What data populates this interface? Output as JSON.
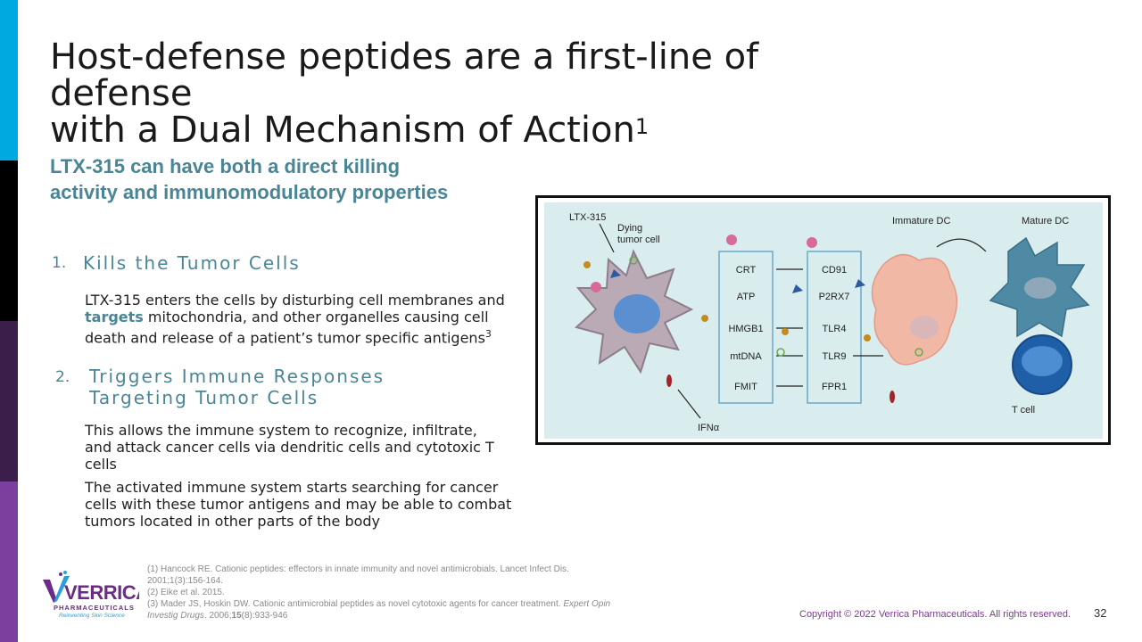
{
  "slide": {
    "title_line1": "Host-defense peptides are a first-line of defense",
    "title_line2": "with a Dual Mechanism of Action",
    "title_sup": "1",
    "subtitle": "LTX-315 can have both a direct killing activity and immunomodulatory properties",
    "item1": {
      "num": "1.",
      "heading": "Kills the Tumor Cells",
      "para_part1": "LTX-315 enters the cells by disturbing cell membranes and ",
      "para_highlight": "targets",
      "para_part2": " mitochondria, and other organelles causing cell death and release of a patient’s tumor specific antigens",
      "para_sup": "3"
    },
    "item2": {
      "num": "2.",
      "heading": "Triggers Immune Responses Targeting Tumor Cells",
      "para1": "This allows the immune system to recognize, infiltrate, and attack cancer cells via dendritic cells and cytotoxic T cells",
      "para2": "The activated immune system starts searching for cancer cells with these tumor antigens and may be able to combat tumors located in other parts of the body"
    },
    "references": {
      "r1": "(1) Hancock RE. Cationic peptides: effectors in innate immunity and novel antimicrobials. Lancet Infect Dis. 2001;1(3):156-164.",
      "r2": "(2) Eike et al. 2015.",
      "r3_plain": "(3) Mader JS, Hoskin DW. Cationic antimicrobial peptides as novel cytotoxic agents for cancer treatment. ",
      "r3_italic": "Expert Opin Investig Drugs",
      "r3_tail_a": ". 2006;",
      "r3_bold": "15",
      "r3_tail_b": "(8):933-946"
    },
    "logo": {
      "name": "VERRICA",
      "sub": "PHARMACEUTICALS",
      "tagline": "Reinventing Skin Science"
    },
    "copyright": "Copyright © 2022 Verrica Pharmaceuticals. All rights reserved.",
    "page_number": "32"
  },
  "figure": {
    "label_ltx": "LTX-315",
    "label_dying_1": "Dying",
    "label_dying_2": "tumor cell",
    "label_immature": "Immature DC",
    "label_mature": "Mature DC",
    "label_tcell": "T cell",
    "label_ifn": "IFNα",
    "left_box": [
      "CRT",
      "ATP",
      "HMGB1",
      "mtDNA",
      "FMIT"
    ],
    "right_box": [
      "CD91",
      "P2RX7",
      "TLR4",
      "TLR9",
      "FPR1"
    ]
  },
  "colors": {
    "accent_teal": "#4a8596",
    "copyright_purple": "#7a3d8c",
    "sidebar": [
      "#00a9e0",
      "#000000",
      "#3b1f4a",
      "#5e2a73",
      "#7b3f9e"
    ]
  }
}
